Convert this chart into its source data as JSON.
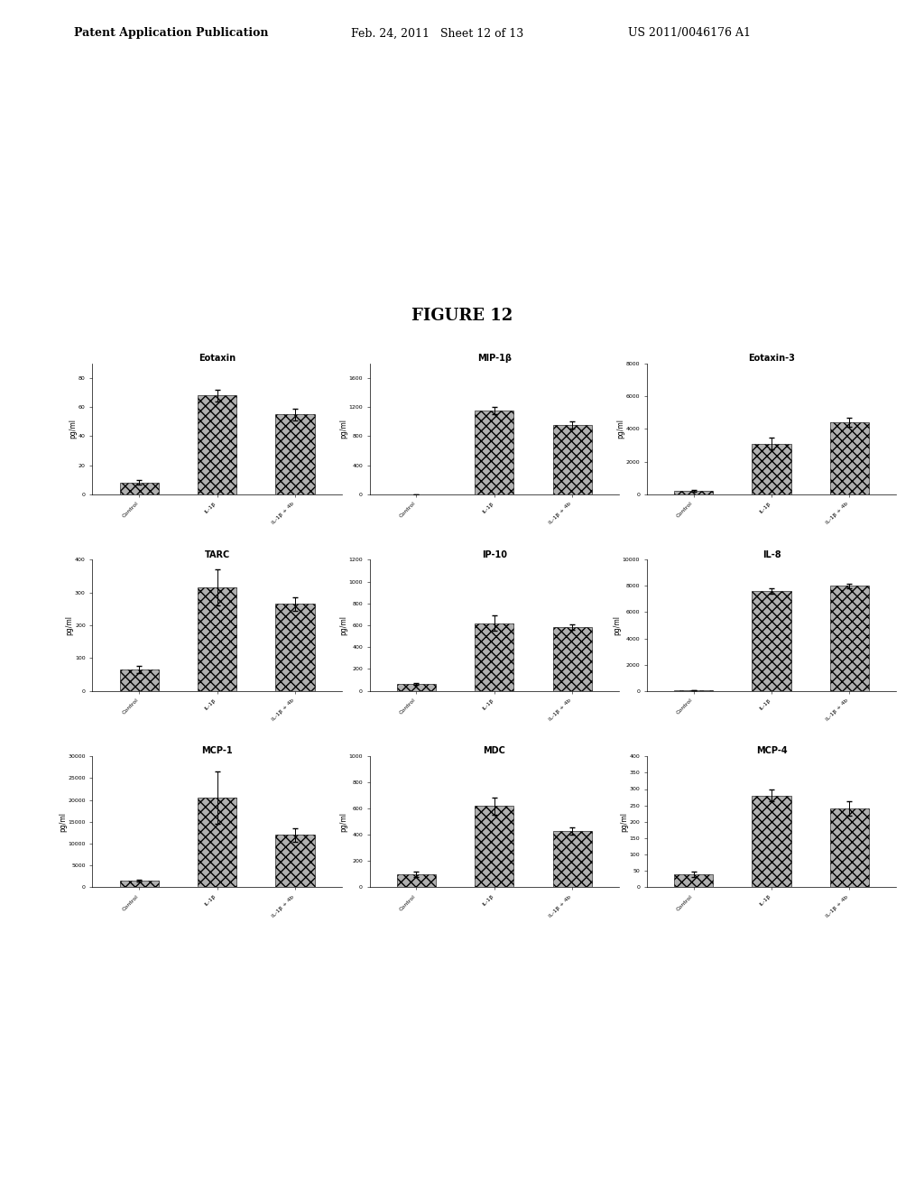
{
  "figure_title": "FIGURE 12",
  "background_color": "#ffffff",
  "bar_color": "#b0b0b0",
  "bar_hatch": "xxx",
  "header_left": "Patent Application Publication",
  "header_mid": "Feb. 24, 2011   Sheet 12 of 13",
  "header_right": "US 2011/0046176 A1",
  "charts": [
    {
      "title": "Eotaxin",
      "ylabel": "pg/ml",
      "categories": [
        "Control",
        "IL-1β",
        "IL-1β + 4b"
      ],
      "values": [
        8,
        68,
        55
      ],
      "errors": [
        1.5,
        4,
        4
      ],
      "ylim": [
        0,
        90
      ],
      "yticks": [
        0,
        20,
        40,
        60,
        80
      ],
      "row": 0,
      "col": 0
    },
    {
      "title": "MIP-1β",
      "ylabel": "pg/ml",
      "categories": [
        "Control",
        "IL-1β",
        "IL-1β + 4b"
      ],
      "values": [
        0,
        1150,
        950
      ],
      "errors": [
        0,
        50,
        50
      ],
      "ylim": [
        0,
        1800
      ],
      "yticks": [
        0,
        400,
        800,
        1200,
        1600
      ],
      "row": 0,
      "col": 1
    },
    {
      "title": "Eotaxin-3",
      "ylabel": "pg/ml",
      "categories": [
        "Control",
        "IL-1β",
        "IL-1β + 4b"
      ],
      "values": [
        200,
        3100,
        4400
      ],
      "errors": [
        50,
        350,
        280
      ],
      "ylim": [
        0,
        8000
      ],
      "yticks": [
        0,
        2000,
        4000,
        6000,
        8000
      ],
      "row": 0,
      "col": 2
    },
    {
      "title": "TARC",
      "ylabel": "pg/ml",
      "categories": [
        "Control",
        "IL-1β",
        "IL-1β + 4b"
      ],
      "values": [
        65,
        315,
        265
      ],
      "errors": [
        10,
        55,
        20
      ],
      "ylim": [
        0,
        400
      ],
      "yticks": [
        0,
        100,
        200,
        300,
        400
      ],
      "row": 1,
      "col": 0
    },
    {
      "title": "IP-10",
      "ylabel": "pg/ml",
      "categories": [
        "Control",
        "IL-1β",
        "IL-1β + 4b"
      ],
      "values": [
        65,
        620,
        580
      ],
      "errors": [
        10,
        70,
        25
      ],
      "ylim": [
        0,
        1200
      ],
      "yticks": [
        0,
        200,
        400,
        600,
        800,
        1000,
        1200
      ],
      "row": 1,
      "col": 1
    },
    {
      "title": "IL-8",
      "ylabel": "pg/ml",
      "categories": [
        "Control",
        "IL-1β",
        "IL-1β + 4b"
      ],
      "values": [
        30,
        7600,
        8000
      ],
      "errors": [
        5,
        200,
        180
      ],
      "ylim": [
        0,
        10000
      ],
      "yticks": [
        0,
        2000,
        4000,
        6000,
        8000,
        10000
      ],
      "row": 1,
      "col": 2
    },
    {
      "title": "MCP-1",
      "ylabel": "pg/ml",
      "categories": [
        "Control",
        "IL-1β",
        "IL-1β + 4b"
      ],
      "values": [
        1500,
        20500,
        12000
      ],
      "errors": [
        200,
        6000,
        1500
      ],
      "ylim": [
        0,
        30000
      ],
      "yticks": [
        0,
        5000,
        10000,
        15000,
        20000,
        25000,
        30000
      ],
      "row": 2,
      "col": 0
    },
    {
      "title": "MDC",
      "ylabel": "pg/ml",
      "categories": [
        "Control",
        "IL-1β",
        "IL-1β + 4b"
      ],
      "values": [
        100,
        620,
        430
      ],
      "errors": [
        20,
        65,
        30
      ],
      "ylim": [
        0,
        1000
      ],
      "yticks": [
        0,
        200,
        400,
        600,
        800,
        1000
      ],
      "row": 2,
      "col": 1
    },
    {
      "title": "MCP-4",
      "ylabel": "pg/ml",
      "categories": [
        "Control",
        "IL-1β",
        "IL-1β + 4b"
      ],
      "values": [
        40,
        280,
        240
      ],
      "errors": [
        8,
        18,
        22
      ],
      "ylim": [
        0,
        400
      ],
      "yticks": [
        0,
        50,
        100,
        150,
        200,
        250,
        300,
        350,
        400
      ],
      "row": 2,
      "col": 2
    }
  ]
}
